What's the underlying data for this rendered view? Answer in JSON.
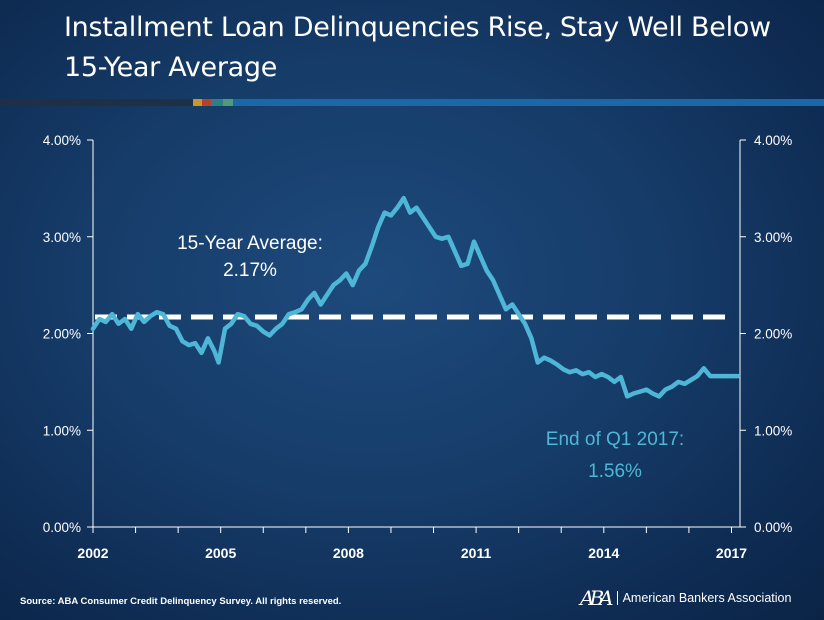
{
  "slide": {
    "title_line1": "Installment Loan Delinquencies Rise, Stay Well Below",
    "title_line2": "15-Year Average",
    "source": "Source: ABA Consumer Credit Delinquency Survey.  All rights reserved.",
    "logo_mark": "ABA",
    "logo_text": "American Bankers Association",
    "rule_colors": [
      "#1f2f44",
      "#c9962a",
      "#b3432e",
      "#2f7f86",
      "#4f9a7a",
      "#1b67a8"
    ]
  },
  "chart_data": {
    "type": "line",
    "title": "",
    "xlabel": "",
    "ylabel": "",
    "xlim": [
      2002,
      2017.2
    ],
    "ylim": [
      0,
      4
    ],
    "x_ticks": [
      2002,
      2005,
      2008,
      2011,
      2014,
      2017
    ],
    "x_tick_labels": [
      "2002",
      "2005",
      "2008",
      "2011",
      "2014",
      "2017"
    ],
    "y_ticks": [
      0,
      1,
      2,
      3,
      4
    ],
    "y_tick_labels": [
      "0.00%",
      "1.00%",
      "2.00%",
      "3.00%",
      "4.00%"
    ],
    "grid": false,
    "colors": {
      "series": "#4eb6d6",
      "reference": "#ffffff",
      "axis": "#ffffff"
    },
    "series": [
      {
        "x": [
          2002.0,
          2002.15,
          2002.3,
          2002.45,
          2002.6,
          2002.75,
          2002.9,
          2003.05,
          2003.2,
          2003.35,
          2003.5,
          2003.65,
          2003.8,
          2003.95,
          2004.1,
          2004.25,
          2004.4,
          2004.55,
          2004.7,
          2004.85,
          2004.95,
          2005.1,
          2005.25,
          2005.4,
          2005.55,
          2005.7,
          2005.85,
          2006.0,
          2006.15,
          2006.3,
          2006.45,
          2006.6,
          2006.75,
          2006.9,
          2007.05,
          2007.2,
          2007.35,
          2007.5,
          2007.65,
          2007.8,
          2007.95,
          2008.1,
          2008.25,
          2008.4,
          2008.55,
          2008.7,
          2008.85,
          2009.0,
          2009.15,
          2009.3,
          2009.45,
          2009.6,
          2009.75,
          2009.9,
          2010.05,
          2010.2,
          2010.35,
          2010.5,
          2010.65,
          2010.8,
          2010.95,
          2011.1,
          2011.25,
          2011.4,
          2011.55,
          2011.7,
          2011.85,
          2012.0,
          2012.15,
          2012.3,
          2012.45,
          2012.6,
          2012.75,
          2012.9,
          2013.05,
          2013.2,
          2013.35,
          2013.5,
          2013.65,
          2013.8,
          2013.95,
          2014.1,
          2014.25,
          2014.4,
          2014.55,
          2014.7,
          2014.85,
          2015.0,
          2015.15,
          2015.3,
          2015.45,
          2015.6,
          2015.75,
          2015.9,
          2016.05,
          2016.2,
          2016.35,
          2016.5,
          2016.65,
          2016.8,
          2016.95,
          2017.05,
          2017.15
        ],
        "y": [
          2.05,
          2.15,
          2.12,
          2.2,
          2.1,
          2.15,
          2.05,
          2.2,
          2.12,
          2.18,
          2.22,
          2.2,
          2.08,
          2.05,
          1.92,
          1.88,
          1.9,
          1.8,
          1.95,
          1.82,
          1.7,
          2.05,
          2.1,
          2.2,
          2.18,
          2.1,
          2.08,
          2.02,
          1.98,
          2.05,
          2.1,
          2.2,
          2.22,
          2.25,
          2.35,
          2.42,
          2.3,
          2.4,
          2.5,
          2.55,
          2.62,
          2.5,
          2.65,
          2.72,
          2.9,
          3.1,
          3.25,
          3.22,
          3.3,
          3.4,
          3.25,
          3.3,
          3.2,
          3.1,
          3.0,
          2.98,
          3.0,
          2.85,
          2.7,
          2.72,
          2.95,
          2.8,
          2.65,
          2.55,
          2.4,
          2.25,
          2.3,
          2.2,
          2.1,
          1.95,
          1.7,
          1.75,
          1.72,
          1.68,
          1.63,
          1.6,
          1.62,
          1.58,
          1.6,
          1.55,
          1.58,
          1.55,
          1.5,
          1.55,
          1.35,
          1.38,
          1.4,
          1.42,
          1.38,
          1.35,
          1.42,
          1.45,
          1.5,
          1.48,
          1.52,
          1.56,
          1.64,
          1.56,
          1.56,
          1.56,
          1.56,
          1.56,
          1.56
        ]
      }
    ],
    "reference_line": {
      "y": 2.17,
      "label_line1": "15-Year Average:",
      "label_line2": "2.17%"
    },
    "annotations": [
      {
        "text_line1": "End of Q1 2017:",
        "text_line2": "1.56%"
      }
    ]
  }
}
